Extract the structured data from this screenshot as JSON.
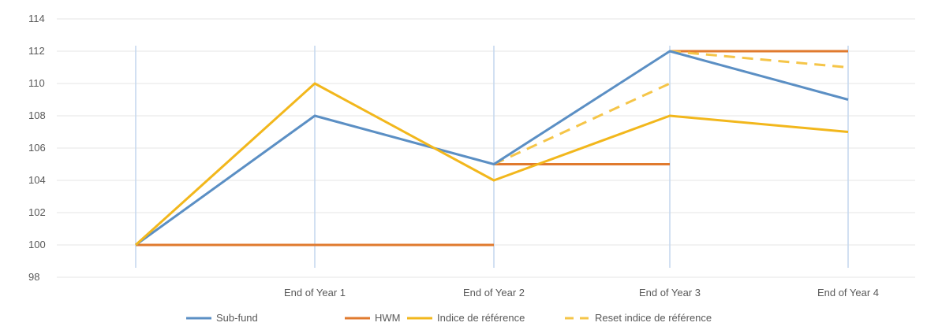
{
  "chart_data": {
    "type": "line",
    "categories": [
      "",
      "End of Year 1",
      "End of Year 2",
      "End of Year 3",
      "End of Year 4"
    ],
    "ylim": [
      98,
      114
    ],
    "yticks": [
      98,
      100,
      102,
      104,
      106,
      108,
      110,
      112,
      114
    ],
    "grid": true,
    "legend_position": "bottom",
    "series": [
      {
        "name": "Sub-fund",
        "color": "#5b8fc4",
        "style": "solid",
        "points": [
          [
            0,
            100
          ],
          [
            1,
            108
          ],
          [
            2,
            105
          ],
          [
            3,
            112
          ],
          [
            4,
            109
          ]
        ]
      },
      {
        "name": "HWM",
        "color": "#e07a2e",
        "style": "solid",
        "segments": [
          [
            [
              0,
              100
            ],
            [
              2,
              100
            ]
          ],
          [
            [
              2,
              105
            ],
            [
              3,
              105
            ]
          ],
          [
            [
              3,
              112
            ],
            [
              4,
              112
            ]
          ]
        ]
      },
      {
        "name": "Indice de référence",
        "color": "#f2b71c",
        "style": "solid",
        "points": [
          [
            0,
            100
          ],
          [
            1,
            110
          ],
          [
            2,
            104
          ],
          [
            3,
            108
          ],
          [
            4,
            107
          ]
        ]
      },
      {
        "name": "Reset indice de référence",
        "color": "#f5c548",
        "style": "dashed",
        "segments": [
          [
            [
              2,
              105
            ],
            [
              3,
              110
            ]
          ],
          [
            [
              3,
              112
            ],
            [
              4,
              111
            ]
          ]
        ]
      }
    ]
  }
}
